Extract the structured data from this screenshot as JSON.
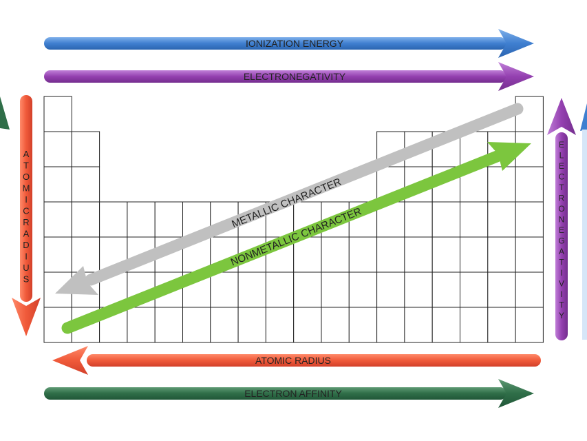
{
  "colors": {
    "blue": "#3f7fd0",
    "purple": "#9440b0",
    "red": "#f05a3a",
    "green": "#2f6e48",
    "gray": "#c0c0c0",
    "lightgreen": "#7cc63e",
    "grid": "#222222"
  },
  "arrows": {
    "ionization_energy": "IONIZATION ENERGY",
    "electronegativity_top": "ELECTRONEGATIVITY",
    "atomic_radius_bottom": "ATOMIC RADIUS",
    "electron_affinity": "ELECTRON AFFINITY",
    "atomic_radius_side": "ATOMIC RADIUS",
    "electronegativity_side": "ELECTRONEGATIVITY",
    "metallic_character": "METALLIC CHARACTER",
    "nonmetallic_character": "NONMETALLIC CHARACTER"
  }
}
